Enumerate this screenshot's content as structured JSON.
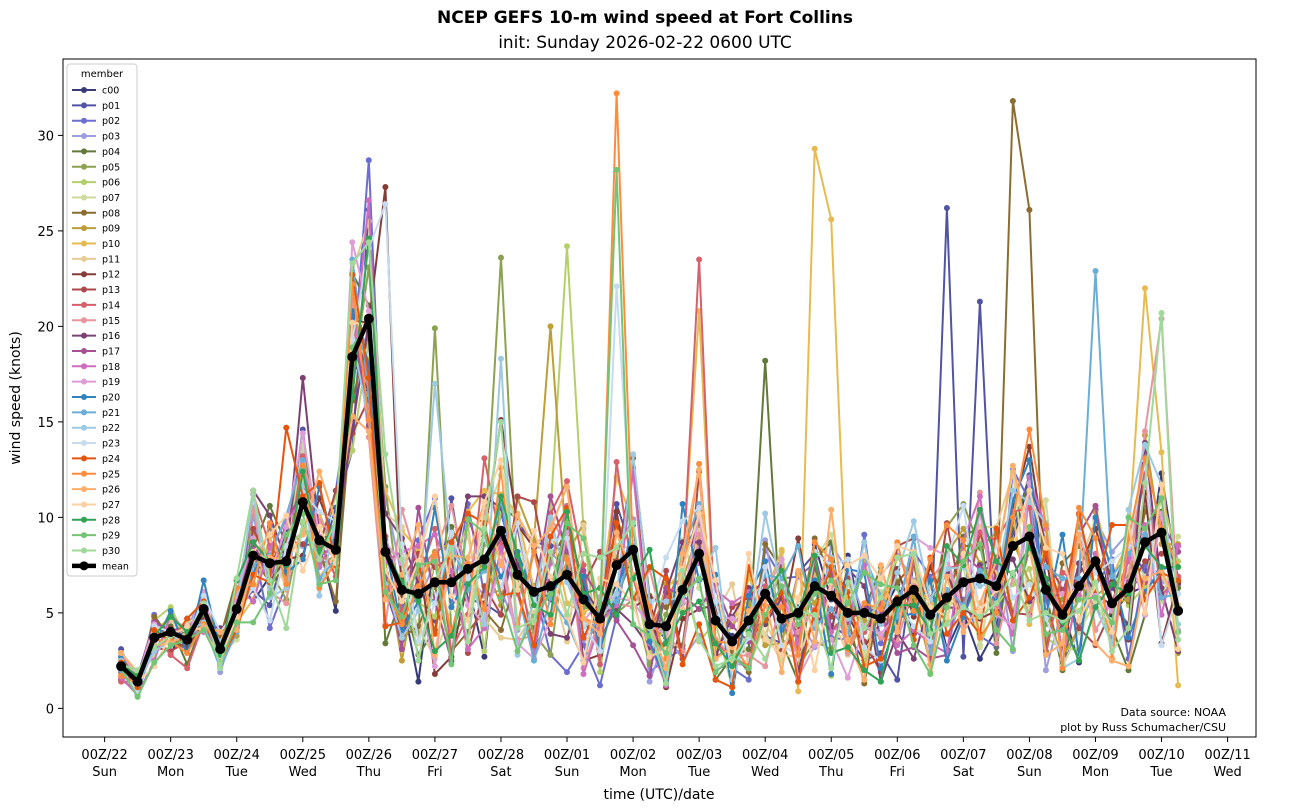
{
  "chart_data": {
    "type": "line",
    "title": "NCEP GEFS 10-m wind speed at Fort Collins",
    "subtitle": "init: Sunday 2026-02-22 0600 UTC",
    "xlabel": "time (UTC)/date",
    "ylabel": "wind speed (knots)",
    "ylim": [
      -1.5,
      34
    ],
    "yticks": [
      0,
      5,
      10,
      15,
      20,
      25,
      30
    ],
    "xlim": [
      -0.63,
      17.43
    ],
    "xticks": [
      {
        "day": 0,
        "label": "00Z/22",
        "weekday": "Sun"
      },
      {
        "day": 1,
        "label": "00Z/23",
        "weekday": "Mon"
      },
      {
        "day": 2,
        "label": "00Z/24",
        "weekday": "Tue"
      },
      {
        "day": 3,
        "label": "00Z/25",
        "weekday": "Wed"
      },
      {
        "day": 4,
        "label": "00Z/26",
        "weekday": "Thu"
      },
      {
        "day": 5,
        "label": "00Z/27",
        "weekday": "Fri"
      },
      {
        "day": 6,
        "label": "00Z/28",
        "weekday": "Sat"
      },
      {
        "day": 7,
        "label": "00Z/01",
        "weekday": "Sun"
      },
      {
        "day": 8,
        "label": "00Z/02",
        "weekday": "Mon"
      },
      {
        "day": 9,
        "label": "00Z/03",
        "weekday": "Tue"
      },
      {
        "day": 10,
        "label": "00Z/04",
        "weekday": "Wed"
      },
      {
        "day": 11,
        "label": "00Z/05",
        "weekday": "Thu"
      },
      {
        "day": 12,
        "label": "00Z/06",
        "weekday": "Fri"
      },
      {
        "day": 13,
        "label": "00Z/07",
        "weekday": "Sat"
      },
      {
        "day": 14,
        "label": "00Z/08",
        "weekday": "Sun"
      },
      {
        "day": 15,
        "label": "00Z/09",
        "weekday": "Mon"
      },
      {
        "day": 16,
        "label": "00Z/10",
        "weekday": "Tue"
      },
      {
        "day": 17,
        "label": "00Z/11",
        "weekday": "Wed"
      }
    ],
    "time_step_days": 0.25,
    "time_start_day": 0.25,
    "legend_title": "member",
    "legend_position": "top-left",
    "members": [
      {
        "name": "c00",
        "color": "#393b79"
      },
      {
        "name": "p01",
        "color": "#5254a3"
      },
      {
        "name": "p02",
        "color": "#6b6ecf"
      },
      {
        "name": "p03",
        "color": "#9c9ede"
      },
      {
        "name": "p04",
        "color": "#637939"
      },
      {
        "name": "p05",
        "color": "#8ca252"
      },
      {
        "name": "p06",
        "color": "#b5cf6b"
      },
      {
        "name": "p07",
        "color": "#cedb9c"
      },
      {
        "name": "p08",
        "color": "#8c6d31"
      },
      {
        "name": "p09",
        "color": "#bd9e39"
      },
      {
        "name": "p10",
        "color": "#e7ba52"
      },
      {
        "name": "p11",
        "color": "#e7cb94"
      },
      {
        "name": "p12",
        "color": "#843c39"
      },
      {
        "name": "p13",
        "color": "#ad494a"
      },
      {
        "name": "p14",
        "color": "#d6616b"
      },
      {
        "name": "p15",
        "color": "#e7969c"
      },
      {
        "name": "p16",
        "color": "#7b4173"
      },
      {
        "name": "p17",
        "color": "#a55194"
      },
      {
        "name": "p18",
        "color": "#ce6dbd"
      },
      {
        "name": "p19",
        "color": "#de9ed6"
      },
      {
        "name": "p20",
        "color": "#3182bd"
      },
      {
        "name": "p21",
        "color": "#6baed6"
      },
      {
        "name": "p22",
        "color": "#9ecae1"
      },
      {
        "name": "p23",
        "color": "#c6dbef"
      },
      {
        "name": "p24",
        "color": "#e6550d"
      },
      {
        "name": "p25",
        "color": "#fd8d3c"
      },
      {
        "name": "p26",
        "color": "#fdae6b"
      },
      {
        "name": "p27",
        "color": "#fdd0a2"
      },
      {
        "name": "p28",
        "color": "#31a354"
      },
      {
        "name": "p29",
        "color": "#74c476"
      },
      {
        "name": "p30",
        "color": "#a1d99b"
      }
    ],
    "mean": {
      "name": "mean",
      "color": "#000000",
      "values": [
        2.2,
        1.4,
        3.7,
        4.0,
        3.6,
        5.2,
        3.1,
        5.2,
        8.0,
        7.6,
        7.7,
        10.8,
        8.8,
        8.3,
        18.4,
        20.4,
        8.2,
        6.2,
        6.0,
        6.6,
        6.6,
        7.3,
        7.8,
        9.3,
        7.0,
        6.1,
        6.4,
        7.0,
        5.7,
        4.7,
        7.5,
        8.3,
        4.4,
        4.3,
        6.2,
        8.1,
        4.6,
        3.5,
        4.6,
        6.0,
        4.7,
        5.0,
        6.4,
        5.9,
        5.0,
        5.0,
        4.7,
        5.6,
        6.2,
        4.9,
        5.8,
        6.6,
        6.8,
        6.4,
        8.5,
        9.0,
        6.2,
        4.9,
        6.4,
        7.7,
        5.5,
        6.3,
        8.7,
        9.2,
        5.1
      ]
    },
    "member_anomalies": [
      {
        "member": "p02",
        "day": 4.0,
        "value": 28.7
      },
      {
        "member": "p23",
        "day": 4.25,
        "value": 26.4
      },
      {
        "member": "p12",
        "day": 4.25,
        "value": 27.3
      },
      {
        "member": "p16",
        "day": 3.0,
        "value": 17.3
      },
      {
        "member": "p24",
        "day": 2.75,
        "value": 14.7
      },
      {
        "member": "p05",
        "day": 5.0,
        "value": 19.9
      },
      {
        "member": "p22",
        "day": 5.0,
        "value": 17.0
      },
      {
        "member": "p05",
        "day": 6.0,
        "value": 23.6
      },
      {
        "member": "p22",
        "day": 6.0,
        "value": 18.3
      },
      {
        "member": "p06",
        "day": 7.0,
        "value": 24.2
      },
      {
        "member": "p09",
        "day": 6.75,
        "value": 20.0
      },
      {
        "member": "p25",
        "day": 7.75,
        "value": 32.2
      },
      {
        "member": "p29",
        "day": 7.75,
        "value": 28.2
      },
      {
        "member": "p23",
        "day": 7.75,
        "value": 22.1
      },
      {
        "member": "p14",
        "day": 9.0,
        "value": 23.5
      },
      {
        "member": "p10",
        "day": 9.0,
        "value": 20.8
      },
      {
        "member": "p04",
        "day": 10.0,
        "value": 18.2
      },
      {
        "member": "p10",
        "day": 10.75,
        "value": 29.3
      },
      {
        "member": "p10",
        "day": 11.0,
        "value": 25.6
      },
      {
        "member": "p01",
        "day": 12.75,
        "value": 26.2
      },
      {
        "member": "p01",
        "day": 13.25,
        "value": 21.3
      },
      {
        "member": "p08",
        "day": 13.75,
        "value": 31.8
      },
      {
        "member": "p08",
        "day": 14.0,
        "value": 26.1
      },
      {
        "member": "p21",
        "day": 15.0,
        "value": 22.9
      },
      {
        "member": "p10",
        "day": 15.75,
        "value": 22.0
      },
      {
        "member": "p30",
        "day": 16.0,
        "value": 20.7
      },
      {
        "member": "p15",
        "day": 16.0,
        "value": 20.4
      }
    ],
    "annotation": [
      "Data source: NOAA",
      "plot by Russ Schumacher/CSU"
    ]
  }
}
